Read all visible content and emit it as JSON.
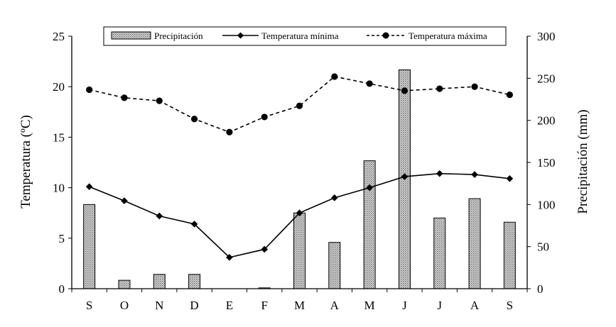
{
  "chart_data": {
    "type": "bar+line",
    "categories": [
      "S",
      "O",
      "N",
      "D",
      "E",
      "F",
      "M",
      "A",
      "M",
      "J",
      "J",
      "A",
      "S"
    ],
    "bar_series": {
      "name": "Precipitación",
      "axis": "right",
      "values": [
        100,
        10,
        17,
        17,
        0,
        1,
        90,
        55,
        152,
        260,
        84,
        107,
        79
      ]
    },
    "line_series": [
      {
        "name": "Temperatura mínima",
        "axis": "left",
        "style": "solid",
        "marker": "diamond",
        "values": [
          10.1,
          8.7,
          7.2,
          6.4,
          3.1,
          3.9,
          7.5,
          9.0,
          10.0,
          11.1,
          11.4,
          11.3,
          10.9
        ]
      },
      {
        "name": "Temperatura máxima",
        "axis": "left",
        "style": "dashed",
        "marker": "circle",
        "values": [
          19.7,
          18.9,
          18.6,
          16.8,
          15.5,
          17.0,
          18.1,
          21.0,
          20.3,
          19.6,
          19.8,
          20.0,
          19.2
        ]
      }
    ],
    "y_left": {
      "label": "Temperatura (ºC)",
      "ylim": [
        0,
        25
      ],
      "ticks": [
        "0",
        "5",
        "10",
        "15",
        "20",
        "25"
      ]
    },
    "y_right": {
      "label": "Precipitación (mm)",
      "ylim": [
        0,
        300
      ],
      "ticks": [
        "0",
        "50",
        "100",
        "150",
        "200",
        "250",
        "300"
      ]
    },
    "grid": false,
    "legend_placement": "top-center",
    "colors": {
      "axis": "#000000",
      "line": "#000000",
      "bar_fill": "#c8c8c8",
      "bar_stroke": "#000000"
    }
  }
}
